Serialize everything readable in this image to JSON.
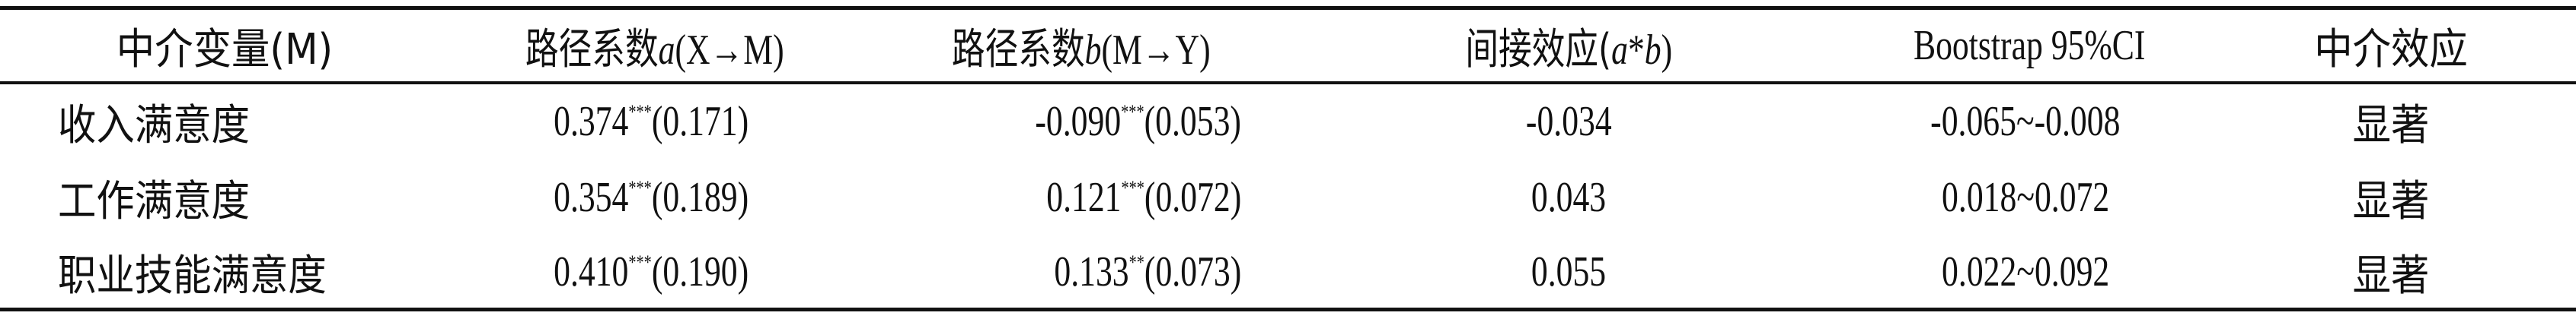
{
  "table": {
    "headers": [
      {
        "text": "中介变量(M)"
      },
      {
        "prefix": "路径系数",
        "var": "a",
        "suffix": "(X→M)"
      },
      {
        "prefix": "路径系数",
        "var": "b",
        "suffix": "(M→Y)"
      },
      {
        "prefix": "间接效应(",
        "var": "a",
        "mid": "*",
        "var2": "b",
        "suffix": ")"
      },
      {
        "text": "Bootstrap 95%CI"
      },
      {
        "text": "中介效应"
      }
    ],
    "rows": [
      {
        "mediator": "收入满意度",
        "a": "0.374",
        "a_sig": "***",
        "a_se": "(0.171)",
        "b": "-0.090",
        "b_sig": "***",
        "b_se": "(0.053)",
        "indirect": "-0.034",
        "ci": "-0.065~-0.008",
        "effect": "显著"
      },
      {
        "mediator": "工作满意度",
        "a": "0.354",
        "a_sig": "***",
        "a_se": "(0.189)",
        "b": "0.121",
        "b_sig": "***",
        "b_se": "(0.072)",
        "indirect": "0.043",
        "ci": "0.018~0.072",
        "effect": "显著"
      },
      {
        "mediator": "职业技能满意度",
        "a": "0.410",
        "a_sig": "***",
        "a_se": "(0.190)",
        "b": "0.133",
        "b_sig": "**",
        "b_se": "(0.073)",
        "indirect": "0.055",
        "ci": "0.022~0.092",
        "effect": "显著"
      }
    ]
  }
}
